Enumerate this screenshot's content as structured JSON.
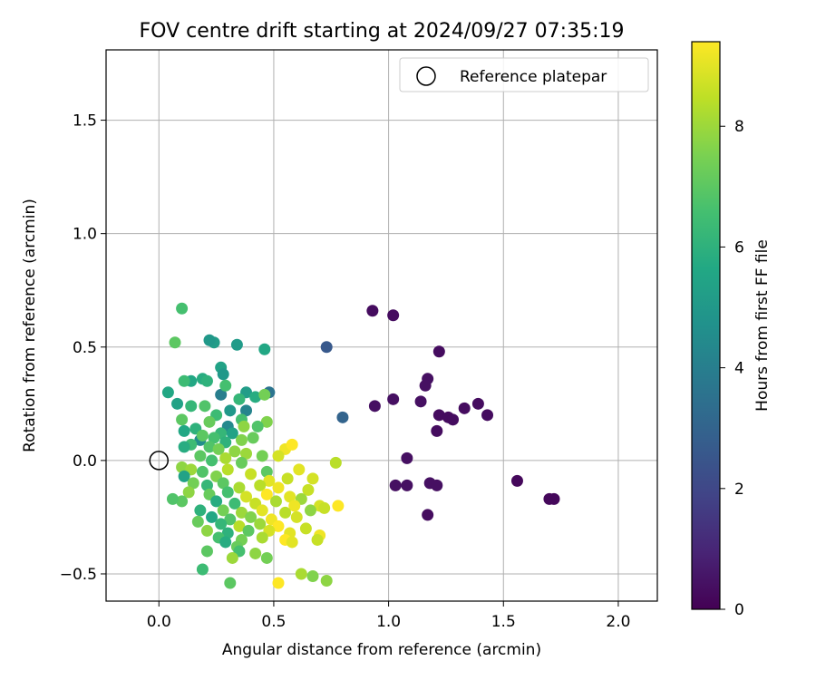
{
  "chart_data": {
    "type": "scatter",
    "title": "FOV centre drift starting at 2024/09/27 07:35:19",
    "xlabel": "Angular distance from reference (arcmin)",
    "ylabel": "Rotation from reference (arcmin)",
    "xlim": [
      -0.23,
      2.17
    ],
    "ylim": [
      -0.62,
      1.81
    ],
    "xticks": [
      0.0,
      0.5,
      1.0,
      1.5,
      2.0
    ],
    "xtick_labels": [
      "0.0",
      "0.5",
      "1.0",
      "1.5",
      "2.0"
    ],
    "yticks": [
      -0.5,
      0.0,
      0.5,
      1.0,
      1.5
    ],
    "ytick_labels": [
      "−0.5",
      "0.0",
      "0.5",
      "1.0",
      "1.5"
    ],
    "grid": true,
    "legend": {
      "position": "top-right",
      "entries": [
        "Reference platepar"
      ]
    },
    "reference_point": {
      "name": "Reference platepar",
      "x": 0.0,
      "y": 0.0
    },
    "colorbar": {
      "label": "Hours from first FF file",
      "colormap": "viridis",
      "range": [
        0,
        9.4
      ],
      "ticks": [
        0,
        2,
        4,
        6,
        8
      ],
      "tick_labels": [
        "0",
        "2",
        "4",
        "6",
        "8"
      ]
    },
    "points": [
      {
        "x": 0.93,
        "y": 0.66,
        "h": 0.3
      },
      {
        "x": 1.02,
        "y": 0.64,
        "h": 0.3
      },
      {
        "x": 1.22,
        "y": 0.48,
        "h": 0.3
      },
      {
        "x": 1.17,
        "y": 0.36,
        "h": 0.4
      },
      {
        "x": 1.16,
        "y": 0.33,
        "h": 0.4
      },
      {
        "x": 1.02,
        "y": 0.27,
        "h": 0.4
      },
      {
        "x": 1.14,
        "y": 0.26,
        "h": 0.4
      },
      {
        "x": 0.94,
        "y": 0.24,
        "h": 0.4
      },
      {
        "x": 1.33,
        "y": 0.23,
        "h": 0.3
      },
      {
        "x": 1.39,
        "y": 0.25,
        "h": 0.3
      },
      {
        "x": 1.22,
        "y": 0.2,
        "h": 0.3
      },
      {
        "x": 1.26,
        "y": 0.19,
        "h": 0.3
      },
      {
        "x": 1.28,
        "y": 0.18,
        "h": 0.3
      },
      {
        "x": 1.43,
        "y": 0.2,
        "h": 0.3
      },
      {
        "x": 1.21,
        "y": 0.13,
        "h": 0.3
      },
      {
        "x": 1.08,
        "y": 0.01,
        "h": 0.4
      },
      {
        "x": 1.56,
        "y": -0.09,
        "h": 0.2
      },
      {
        "x": 1.03,
        "y": -0.11,
        "h": 0.4
      },
      {
        "x": 1.08,
        "y": -0.11,
        "h": 0.4
      },
      {
        "x": 1.18,
        "y": -0.1,
        "h": 0.4
      },
      {
        "x": 1.21,
        "y": -0.11,
        "h": 0.4
      },
      {
        "x": 1.7,
        "y": -0.17,
        "h": 0.2
      },
      {
        "x": 1.72,
        "y": -0.17,
        "h": 0.2
      },
      {
        "x": 1.17,
        "y": -0.24,
        "h": 0.3
      },
      {
        "x": 0.73,
        "y": 0.5,
        "h": 2.6
      },
      {
        "x": 0.8,
        "y": 0.19,
        "h": 3.0
      },
      {
        "x": 0.48,
        "y": 0.3,
        "h": 3.6
      },
      {
        "x": 0.27,
        "y": 0.29,
        "h": 4.0
      },
      {
        "x": 0.38,
        "y": 0.22,
        "h": 4.2
      },
      {
        "x": 0.3,
        "y": 0.15,
        "h": 4.4
      },
      {
        "x": 0.18,
        "y": 0.09,
        "h": 4.6
      },
      {
        "x": 0.24,
        "y": 0.52,
        "h": 5.2
      },
      {
        "x": 0.22,
        "y": 0.53,
        "h": 5.0
      },
      {
        "x": 0.34,
        "y": 0.51,
        "h": 5.1
      },
      {
        "x": 0.46,
        "y": 0.49,
        "h": 5.6
      },
      {
        "x": 0.27,
        "y": 0.41,
        "h": 5.4
      },
      {
        "x": 0.28,
        "y": 0.38,
        "h": 5.0
      },
      {
        "x": 0.19,
        "y": 0.36,
        "h": 5.8
      },
      {
        "x": 0.14,
        "y": 0.35,
        "h": 5.6
      },
      {
        "x": 0.21,
        "y": 0.35,
        "h": 6.0
      },
      {
        "x": 0.11,
        "y": 0.35,
        "h": 6.4
      },
      {
        "x": 0.04,
        "y": 0.3,
        "h": 5.6
      },
      {
        "x": 0.29,
        "y": 0.33,
        "h": 6.6
      },
      {
        "x": 0.38,
        "y": 0.3,
        "h": 5.2
      },
      {
        "x": 0.42,
        "y": 0.28,
        "h": 5.8
      },
      {
        "x": 0.35,
        "y": 0.27,
        "h": 6.2
      },
      {
        "x": 0.08,
        "y": 0.25,
        "h": 5.4
      },
      {
        "x": 0.14,
        "y": 0.24,
        "h": 6.2
      },
      {
        "x": 0.2,
        "y": 0.24,
        "h": 6.8
      },
      {
        "x": 0.31,
        "y": 0.22,
        "h": 5.0
      },
      {
        "x": 0.25,
        "y": 0.2,
        "h": 6.4
      },
      {
        "x": 0.36,
        "y": 0.18,
        "h": 6.6
      },
      {
        "x": 0.1,
        "y": 0.18,
        "h": 7.0
      },
      {
        "x": 0.22,
        "y": 0.17,
        "h": 7.2
      },
      {
        "x": 0.47,
        "y": 0.17,
        "h": 7.6
      },
      {
        "x": 0.43,
        "y": 0.15,
        "h": 6.8
      },
      {
        "x": 0.37,
        "y": 0.15,
        "h": 7.8
      },
      {
        "x": 0.16,
        "y": 0.14,
        "h": 6.0
      },
      {
        "x": 0.11,
        "y": 0.13,
        "h": 5.6
      },
      {
        "x": 0.27,
        "y": 0.12,
        "h": 6.2
      },
      {
        "x": 0.32,
        "y": 0.12,
        "h": 5.4
      },
      {
        "x": 0.19,
        "y": 0.11,
        "h": 7.0
      },
      {
        "x": 0.24,
        "y": 0.1,
        "h": 6.6
      },
      {
        "x": 0.41,
        "y": 0.1,
        "h": 7.2
      },
      {
        "x": 0.36,
        "y": 0.09,
        "h": 7.6
      },
      {
        "x": 0.29,
        "y": 0.08,
        "h": 6.0
      },
      {
        "x": 0.14,
        "y": 0.07,
        "h": 6.4
      },
      {
        "x": 0.11,
        "y": 0.06,
        "h": 5.8
      },
      {
        "x": 0.22,
        "y": 0.06,
        "h": 6.8
      },
      {
        "x": 0.26,
        "y": 0.05,
        "h": 7.4
      },
      {
        "x": 0.33,
        "y": 0.04,
        "h": 7.8
      },
      {
        "x": 0.38,
        "y": 0.03,
        "h": 8.0
      },
      {
        "x": 0.18,
        "y": 0.02,
        "h": 7.0
      },
      {
        "x": 0.45,
        "y": 0.02,
        "h": 7.4
      },
      {
        "x": 0.29,
        "y": 0.01,
        "h": 8.2
      },
      {
        "x": 0.23,
        "y": 0.0,
        "h": 6.6
      },
      {
        "x": 0.36,
        "y": -0.01,
        "h": 7.2
      },
      {
        "x": 0.1,
        "y": -0.03,
        "h": 7.8
      },
      {
        "x": 0.14,
        "y": -0.04,
        "h": 8.0
      },
      {
        "x": 0.19,
        "y": -0.05,
        "h": 6.8
      },
      {
        "x": 0.3,
        "y": -0.04,
        "h": 8.4
      },
      {
        "x": 0.11,
        "y": -0.07,
        "h": 5.4
      },
      {
        "x": 0.25,
        "y": -0.07,
        "h": 7.6
      },
      {
        "x": 0.4,
        "y": -0.06,
        "h": 8.6
      },
      {
        "x": 0.47,
        "y": -0.05,
        "h": 7.0
      },
      {
        "x": 0.55,
        "y": 0.05,
        "h": 9.2
      },
      {
        "x": 0.58,
        "y": 0.07,
        "h": 9.4
      },
      {
        "x": 0.52,
        "y": 0.02,
        "h": 8.8
      },
      {
        "x": 0.77,
        "y": -0.01,
        "h": 8.4
      },
      {
        "x": 0.67,
        "y": -0.08,
        "h": 8.8
      },
      {
        "x": 0.61,
        "y": -0.04,
        "h": 9.0
      },
      {
        "x": 0.56,
        "y": -0.08,
        "h": 8.6
      },
      {
        "x": 0.48,
        "y": -0.09,
        "h": 9.0
      },
      {
        "x": 0.15,
        "y": -0.1,
        "h": 7.4
      },
      {
        "x": 0.21,
        "y": -0.11,
        "h": 6.2
      },
      {
        "x": 0.28,
        "y": -0.1,
        "h": 7.0
      },
      {
        "x": 0.35,
        "y": -0.12,
        "h": 8.2
      },
      {
        "x": 0.44,
        "y": -0.11,
        "h": 8.4
      },
      {
        "x": 0.52,
        "y": -0.12,
        "h": 9.2
      },
      {
        "x": 0.65,
        "y": -0.13,
        "h": 8.6
      },
      {
        "x": 0.13,
        "y": -0.14,
        "h": 7.8
      },
      {
        "x": 0.22,
        "y": -0.15,
        "h": 7.2
      },
      {
        "x": 0.3,
        "y": -0.14,
        "h": 6.6
      },
      {
        "x": 0.38,
        "y": -0.16,
        "h": 8.8
      },
      {
        "x": 0.47,
        "y": -0.15,
        "h": 9.4
      },
      {
        "x": 0.57,
        "y": -0.16,
        "h": 9.0
      },
      {
        "x": 0.62,
        "y": -0.17,
        "h": 8.0
      },
      {
        "x": 0.1,
        "y": -0.18,
        "h": 7.0
      },
      {
        "x": 0.25,
        "y": -0.18,
        "h": 5.8
      },
      {
        "x": 0.33,
        "y": -0.19,
        "h": 6.4
      },
      {
        "x": 0.42,
        "y": -0.19,
        "h": 8.6
      },
      {
        "x": 0.51,
        "y": -0.18,
        "h": 8.2
      },
      {
        "x": 0.59,
        "y": -0.2,
        "h": 9.2
      },
      {
        "x": 0.7,
        "y": -0.2,
        "h": 8.8
      },
      {
        "x": 0.78,
        "y": -0.2,
        "h": 9.4
      },
      {
        "x": 0.18,
        "y": -0.22,
        "h": 6.0
      },
      {
        "x": 0.28,
        "y": -0.22,
        "h": 7.4
      },
      {
        "x": 0.36,
        "y": -0.23,
        "h": 8.0
      },
      {
        "x": 0.45,
        "y": -0.22,
        "h": 9.0
      },
      {
        "x": 0.55,
        "y": -0.23,
        "h": 8.4
      },
      {
        "x": 0.66,
        "y": -0.22,
        "h": 7.8
      },
      {
        "x": 0.72,
        "y": -0.21,
        "h": 8.6
      },
      {
        "x": 0.23,
        "y": -0.25,
        "h": 5.6
      },
      {
        "x": 0.31,
        "y": -0.26,
        "h": 6.8
      },
      {
        "x": 0.4,
        "y": -0.25,
        "h": 7.6
      },
      {
        "x": 0.49,
        "y": -0.26,
        "h": 9.2
      },
      {
        "x": 0.6,
        "y": -0.25,
        "h": 8.8
      },
      {
        "x": 0.17,
        "y": -0.27,
        "h": 7.2
      },
      {
        "x": 0.27,
        "y": -0.28,
        "h": 6.2
      },
      {
        "x": 0.35,
        "y": -0.29,
        "h": 8.4
      },
      {
        "x": 0.44,
        "y": -0.28,
        "h": 8.0
      },
      {
        "x": 0.52,
        "y": -0.29,
        "h": 9.4
      },
      {
        "x": 0.64,
        "y": -0.3,
        "h": 8.6
      },
      {
        "x": 0.21,
        "y": -0.31,
        "h": 7.8
      },
      {
        "x": 0.3,
        "y": -0.32,
        "h": 6.0
      },
      {
        "x": 0.39,
        "y": -0.31,
        "h": 7.0
      },
      {
        "x": 0.48,
        "y": -0.31,
        "h": 8.8
      },
      {
        "x": 0.57,
        "y": -0.32,
        "h": 9.0
      },
      {
        "x": 0.7,
        "y": -0.33,
        "h": 9.2
      },
      {
        "x": 0.26,
        "y": -0.34,
        "h": 6.6
      },
      {
        "x": 0.36,
        "y": -0.35,
        "h": 7.4
      },
      {
        "x": 0.45,
        "y": -0.34,
        "h": 8.2
      },
      {
        "x": 0.55,
        "y": -0.35,
        "h": 9.4
      },
      {
        "x": 0.69,
        "y": -0.35,
        "h": 8.6
      },
      {
        "x": 0.29,
        "y": -0.36,
        "h": 5.8
      },
      {
        "x": 0.58,
        "y": -0.36,
        "h": 9.0
      },
      {
        "x": 0.34,
        "y": -0.38,
        "h": 7.2
      },
      {
        "x": 0.21,
        "y": -0.4,
        "h": 7.0
      },
      {
        "x": 0.35,
        "y": -0.4,
        "h": 6.6
      },
      {
        "x": 0.42,
        "y": -0.41,
        "h": 7.8
      },
      {
        "x": 0.47,
        "y": -0.43,
        "h": 7.4
      },
      {
        "x": 0.32,
        "y": -0.43,
        "h": 8.0
      },
      {
        "x": 0.19,
        "y": -0.48,
        "h": 6.4
      },
      {
        "x": 0.62,
        "y": -0.5,
        "h": 8.2
      },
      {
        "x": 0.67,
        "y": -0.51,
        "h": 7.6
      },
      {
        "x": 0.73,
        "y": -0.53,
        "h": 7.8
      },
      {
        "x": 0.31,
        "y": -0.54,
        "h": 7.0
      },
      {
        "x": 0.52,
        "y": -0.54,
        "h": 9.4
      },
      {
        "x": 0.1,
        "y": 0.67,
        "h": 6.6
      },
      {
        "x": 0.07,
        "y": 0.52,
        "h": 7.0
      },
      {
        "x": 0.46,
        "y": 0.29,
        "h": 7.4
      },
      {
        "x": 0.06,
        "y": -0.17,
        "h": 6.8
      }
    ]
  }
}
